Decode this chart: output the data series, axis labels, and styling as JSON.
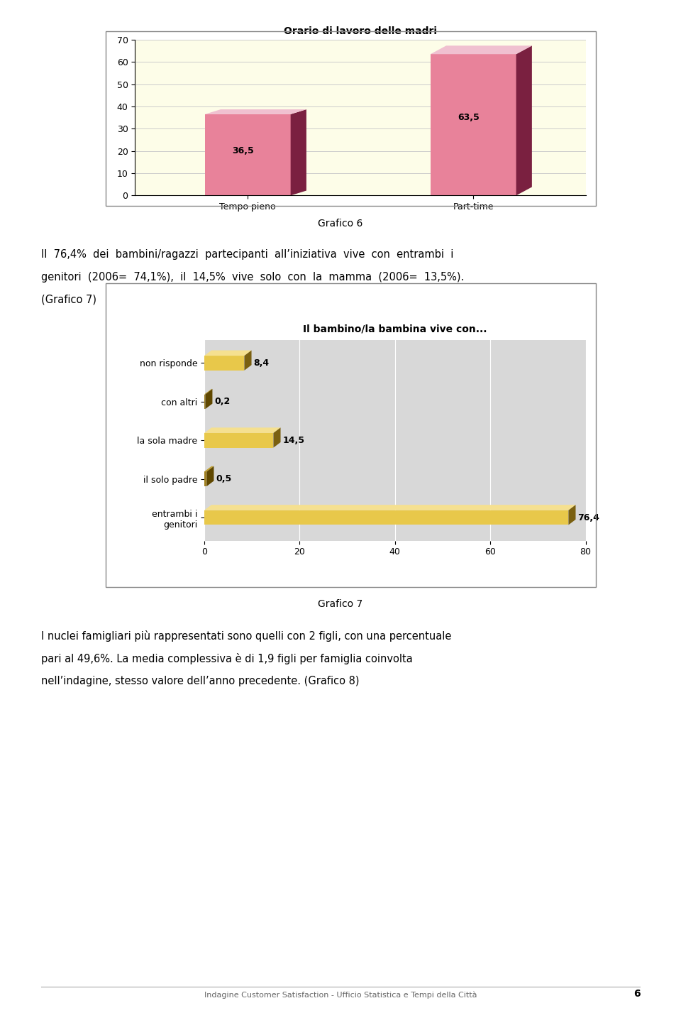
{
  "page_bg": "#ffffff",
  "chart1": {
    "title": "Orario di lavoro delle madri",
    "categories": [
      "Tempo pieno",
      "Part-time"
    ],
    "values": [
      36.5,
      63.5
    ],
    "bar_face_color": "#e8829a",
    "bar_side_color": "#7a2040",
    "bar_top_color": "#f0c0d0",
    "ylim": [
      0,
      70
    ],
    "yticks": [
      0,
      10,
      20,
      30,
      40,
      50,
      60,
      70
    ],
    "plot_bg": "#fdfde8",
    "grid_color": "#cccccc",
    "title_fontsize": 10,
    "label_fontsize": 9,
    "value_fontsize": 9
  },
  "grafico6_label": "Grafico 6",
  "text1_line1": "Il  76,4%  dei  bambini/ragazzi  partecipanti  all’iniziativa  vive  con  entrambi  i",
  "text1_line2": "genitori  (2006=  74,1%),  il  14,5%  vive  solo  con  la  mamma  (2006=  13,5%).",
  "text1_line3": "(Grafico 7)",
  "chart2": {
    "title": "Il bambino/la bambina vive con...",
    "categories": [
      "non risponde",
      "con altri",
      "la sola madre",
      "il solo padre",
      "entrambi i\ngenitori"
    ],
    "values": [
      8.4,
      0.2,
      14.5,
      0.5,
      76.4
    ],
    "bar_face_color": "#e8c84a",
    "bar_side_color": "#7a6010",
    "bar_top_color": "#f5e090",
    "bar_face_small": "#a08020",
    "bar_side_small": "#604800",
    "bar_top_small": "#c0a030",
    "xlim": [
      0,
      80
    ],
    "xticks": [
      0,
      20,
      40,
      60,
      80
    ],
    "plot_bg": "#d8d8d8",
    "grid_color": "#ffffff",
    "title_fontsize": 10,
    "label_fontsize": 9,
    "value_fontsize": 9
  },
  "grafico7_label": "Grafico 7",
  "text2_line1": "I nuclei famigliari più rappresentati sono quelli con 2 figli, con una percentuale",
  "text2_line2": "pari al 49,6%. La media complessiva è di 1,9 figli per famiglia coinvolta",
  "text2_line3": "nell’indagine, stesso valore dell’anno precedente. (Grafico 8)",
  "footer": "Indagine Customer Satisfaction - Ufficio Statistica e Tempi della Città",
  "page_number": "6"
}
